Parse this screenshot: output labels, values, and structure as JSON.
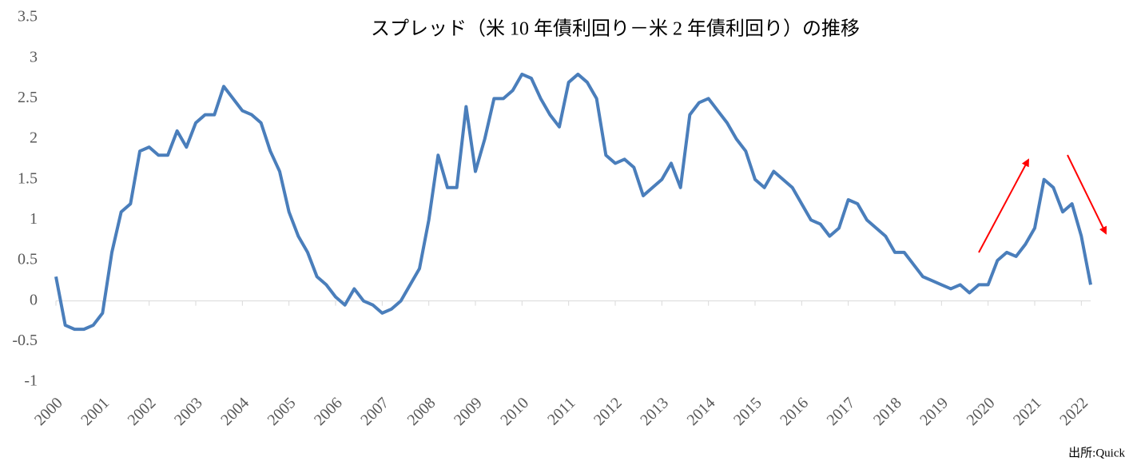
{
  "chart_data": {
    "type": "line",
    "title": "スプレッド（米 10 年債利回り－米 2 年債利回り）の推移",
    "source": "出所:Quick",
    "x": [
      2000.0,
      2000.2,
      2000.4,
      2000.6,
      2000.8,
      2001.0,
      2001.2,
      2001.4,
      2001.6,
      2001.8,
      2002.0,
      2002.2,
      2002.4,
      2002.6,
      2002.8,
      2003.0,
      2003.2,
      2003.4,
      2003.6,
      2003.8,
      2004.0,
      2004.2,
      2004.4,
      2004.6,
      2004.8,
      2005.0,
      2005.2,
      2005.4,
      2005.6,
      2005.8,
      2006.0,
      2006.2,
      2006.4,
      2006.6,
      2006.8,
      2007.0,
      2007.2,
      2007.4,
      2007.6,
      2007.8,
      2008.0,
      2008.2,
      2008.4,
      2008.6,
      2008.8,
      2009.0,
      2009.2,
      2009.4,
      2009.6,
      2009.8,
      2010.0,
      2010.2,
      2010.4,
      2010.6,
      2010.8,
      2011.0,
      2011.2,
      2011.4,
      2011.6,
      2011.8,
      2012.0,
      2012.2,
      2012.4,
      2012.6,
      2012.8,
      2013.0,
      2013.2,
      2013.4,
      2013.6,
      2013.8,
      2014.0,
      2014.2,
      2014.4,
      2014.6,
      2014.8,
      2015.0,
      2015.2,
      2015.4,
      2015.6,
      2015.8,
      2016.0,
      2016.2,
      2016.4,
      2016.6,
      2016.8,
      2017.0,
      2017.2,
      2017.4,
      2017.6,
      2017.8,
      2018.0,
      2018.2,
      2018.4,
      2018.6,
      2018.8,
      2019.0,
      2019.2,
      2019.4,
      2019.6,
      2019.8,
      2020.0,
      2020.2,
      2020.4,
      2020.6,
      2020.8,
      2021.0,
      2021.2,
      2021.4,
      2021.6,
      2021.8,
      2022.0,
      2022.2
    ],
    "series": [
      {
        "color": "#4a7ebb",
        "values": [
          0.3,
          -0.3,
          -0.35,
          -0.35,
          -0.3,
          -0.15,
          0.6,
          1.1,
          1.2,
          1.85,
          1.9,
          1.8,
          1.8,
          2.1,
          1.9,
          2.2,
          2.3,
          2.3,
          2.65,
          2.5,
          2.35,
          2.3,
          2.2,
          1.85,
          1.6,
          1.1,
          0.8,
          0.6,
          0.3,
          0.2,
          0.05,
          -0.05,
          0.15,
          0,
          -0.05,
          -0.15,
          -0.1,
          0,
          0.2,
          0.4,
          1.0,
          1.8,
          1.4,
          1.4,
          2.4,
          1.6,
          2.0,
          2.5,
          2.5,
          2.6,
          2.8,
          2.75,
          2.5,
          2.3,
          2.15,
          2.7,
          2.8,
          2.7,
          2.5,
          1.8,
          1.7,
          1.75,
          1.65,
          1.3,
          1.4,
          1.5,
          1.7,
          1.4,
          2.3,
          2.45,
          2.5,
          2.35,
          2.2,
          2.0,
          1.85,
          1.5,
          1.4,
          1.6,
          1.5,
          1.4,
          1.2,
          1.0,
          0.95,
          0.8,
          0.9,
          1.25,
          1.2,
          1.0,
          0.9,
          0.8,
          0.6,
          0.6,
          0.45,
          0.3,
          0.25,
          0.2,
          0.15,
          0.2,
          0.1,
          0.2,
          0.2,
          0.5,
          0.6,
          0.55,
          0.7,
          0.9,
          1.5,
          1.4,
          1.1,
          1.2,
          0.8,
          0.2
        ]
      }
    ],
    "xlim": [
      2000,
      2022.2
    ],
    "xticks": [
      2000,
      2001,
      2002,
      2003,
      2004,
      2005,
      2006,
      2007,
      2008,
      2009,
      2010,
      2011,
      2012,
      2013,
      2014,
      2015,
      2016,
      2017,
      2018,
      2019,
      2020,
      2021,
      2022
    ],
    "ylim": [
      -1,
      3.5
    ],
    "yticks": [
      -1,
      -0.5,
      0,
      0.5,
      1,
      1.5,
      2,
      2.5,
      3,
      3.5
    ],
    "grid": false
  }
}
